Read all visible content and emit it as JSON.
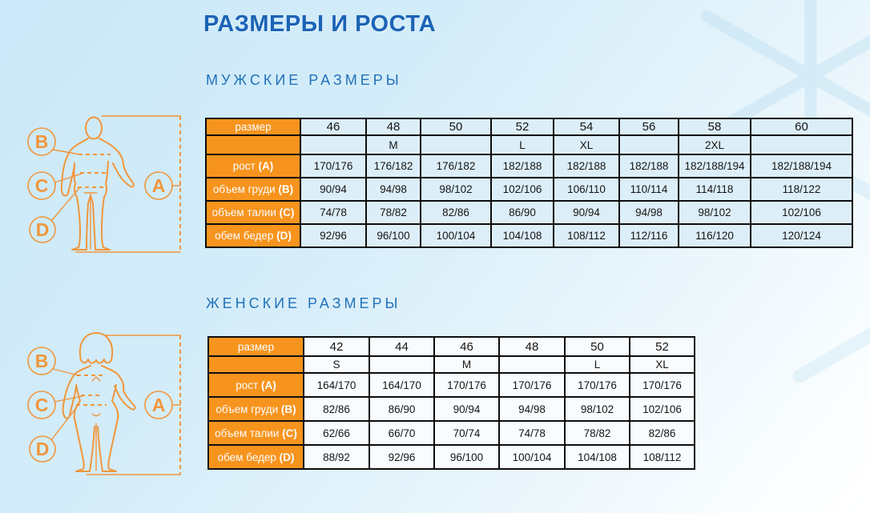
{
  "page": {
    "title": "РАЗМЕРЫ И РОСТА"
  },
  "colors": {
    "title_blue": "#1b63b6",
    "heading_blue": "#2272ba",
    "orange": "#f7941e",
    "figure_orange": "#f0963c",
    "men_cell_bg": "#dceef8",
    "women_cell_bg": "#f9fcfe",
    "table_border": "#0d0d0d",
    "background_top": "#cbe8f8",
    "background_bottom": "#ffffff",
    "snowflake": "#c3e3f4"
  },
  "figure": {
    "height_label": "A",
    "chest_label": "B",
    "waist_label": "C",
    "hip_label": "D"
  },
  "men": {
    "heading": "МУЖСКИЕ РАЗМЕРЫ",
    "table": {
      "corner_label": "размер",
      "sizes": [
        "46",
        "48",
        "50",
        "52",
        "54",
        "56",
        "58",
        "60"
      ],
      "letters": [
        "",
        "M",
        "",
        "L",
        "XL",
        "",
        "2XL",
        ""
      ],
      "rows": [
        {
          "label": "рост",
          "letter_label": "(A)",
          "values": [
            "170/176",
            "176/182",
            "176/182",
            "182/188",
            "182/188",
            "182/188",
            "182/188/194",
            "182/188/194"
          ]
        },
        {
          "label": "объем груди",
          "letter_label": "(B)",
          "values": [
            "90/94",
            "94/98",
            "98/102",
            "102/106",
            "106/110",
            "110/114",
            "114/118",
            "118/122"
          ]
        },
        {
          "label": "объем талии",
          "letter_label": "(C)",
          "values": [
            "74/78",
            "78/82",
            "82/86",
            "86/90",
            "90/94",
            "94/98",
            "98/102",
            "102/106"
          ]
        },
        {
          "label": "обем бедер",
          "letter_label": "(D)",
          "values": [
            "92/96",
            "96/100",
            "100/104",
            "104/108",
            "108/112",
            "112/116",
            "116/120",
            "120/124"
          ]
        }
      ]
    }
  },
  "women": {
    "heading": "ЖЕНСКИЕ РАЗМЕРЫ",
    "table": {
      "corner_label": "размер",
      "sizes": [
        "42",
        "44",
        "46",
        "48",
        "50",
        "52"
      ],
      "letters": [
        "S",
        "",
        "M",
        "",
        "L",
        "XL"
      ],
      "rows": [
        {
          "label": "рост",
          "letter_label": "(A)",
          "values": [
            "164/170",
            "164/170",
            "170/176",
            "170/176",
            "170/176",
            "170/176"
          ]
        },
        {
          "label": "объем груди",
          "letter_label": "(B)",
          "values": [
            "82/86",
            "86/90",
            "90/94",
            "94/98",
            "98/102",
            "102/106"
          ]
        },
        {
          "label": "объем талии",
          "letter_label": "(C)",
          "values": [
            "62/66",
            "66/70",
            "70/74",
            "74/78",
            "78/82",
            "82/86"
          ]
        },
        {
          "label": "обем бедер",
          "letter_label": "(D)",
          "values": [
            "88/92",
            "92/96",
            "96/100",
            "100/104",
            "104/108",
            "108/112"
          ]
        }
      ]
    }
  }
}
